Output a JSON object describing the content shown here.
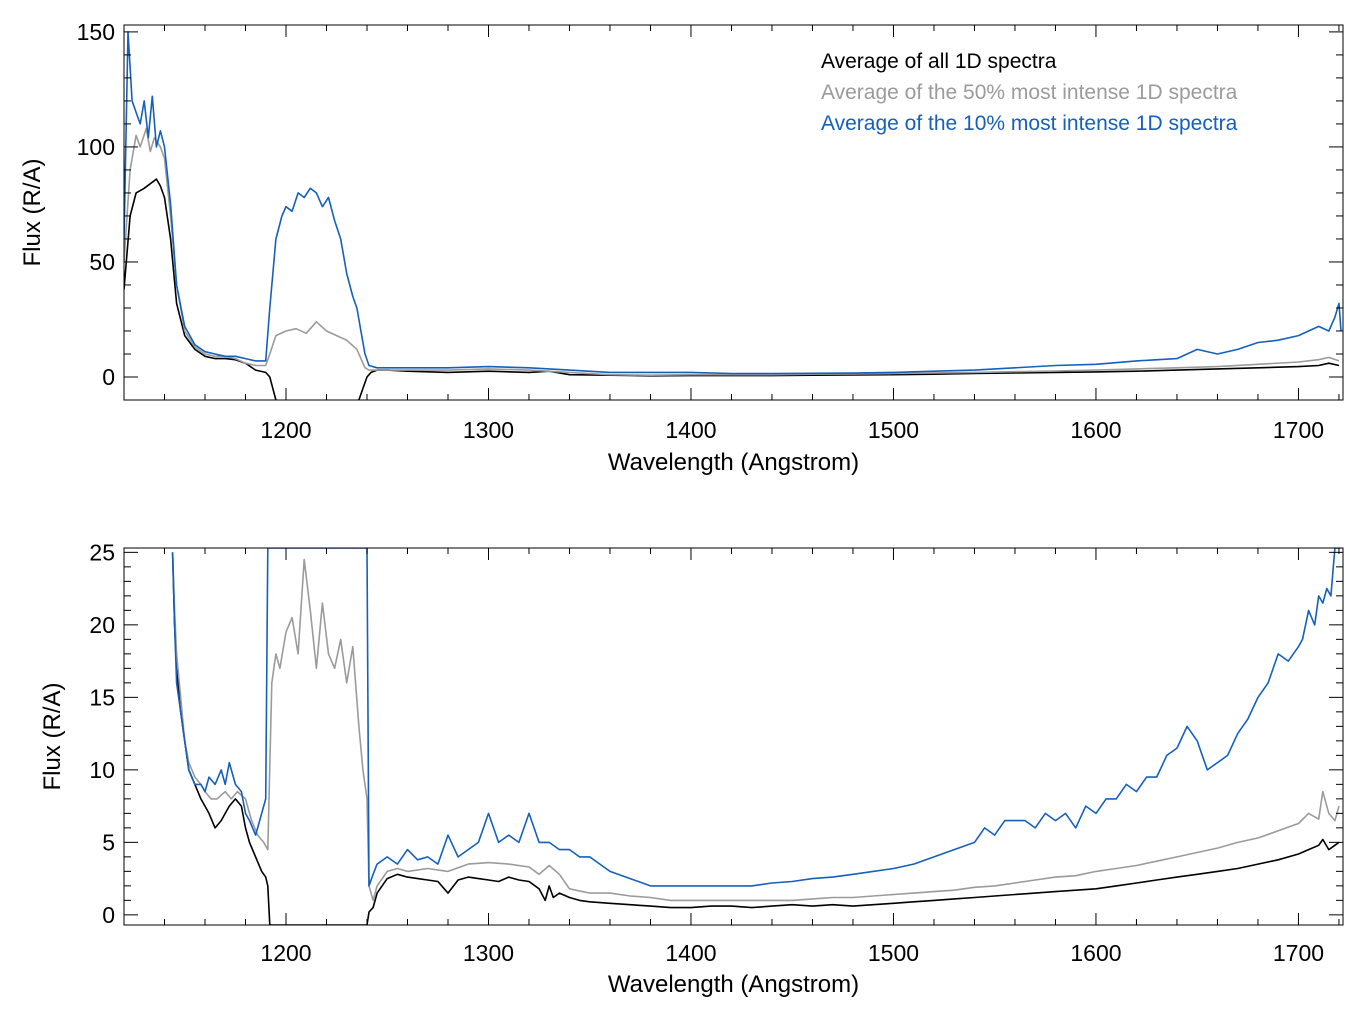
{
  "colors": {
    "all": "#000000",
    "top50": "#9b9b9b",
    "top10": "#1560bd"
  },
  "chart_data": [
    {
      "type": "line",
      "title": "",
      "xlabel": "Wavelength (Angstrom)",
      "ylabel": "Flux (R/A)",
      "xlim": [
        1120,
        1722
      ],
      "ylim": [
        -10,
        153
      ],
      "xticks": [
        1200,
        1300,
        1400,
        1500,
        1600,
        1700
      ],
      "yticks": [
        0,
        50,
        100,
        150
      ],
      "legend": {
        "position": "top-right",
        "entries": [
          "Average of all 1D spectra",
          "Average of the 50% most intense 1D spectra",
          "Average of the 10% most intense 1D spectra"
        ]
      },
      "series": [
        {
          "name": "Average of all 1D spectra",
          "color": "#000000",
          "x": [
            1120,
            1123,
            1126,
            1130,
            1133,
            1136,
            1138,
            1140,
            1143,
            1146,
            1150,
            1155,
            1160,
            1165,
            1170,
            1175,
            1180,
            1185,
            1190,
            1192,
            1195,
            1200,
            1210,
            1220,
            1230,
            1236,
            1238,
            1240,
            1242,
            1245,
            1250,
            1260,
            1280,
            1300,
            1320,
            1330,
            1340,
            1360,
            1380,
            1400,
            1420,
            1440,
            1460,
            1480,
            1500,
            1520,
            1540,
            1560,
            1580,
            1600,
            1620,
            1640,
            1660,
            1680,
            1700,
            1710,
            1715,
            1720
          ],
          "y": [
            38,
            70,
            80,
            82,
            84,
            86,
            83,
            78,
            60,
            32,
            18,
            12,
            9,
            8,
            8,
            7.5,
            6,
            3,
            2,
            0,
            -10,
            -12,
            -12,
            -11,
            -11,
            -10,
            -5,
            0,
            2,
            3,
            3,
            2.5,
            2,
            2.5,
            2,
            2.5,
            1,
            0.8,
            0.5,
            0.6,
            0.6,
            0.6,
            0.8,
            0.9,
            1,
            1.2,
            1.5,
            1.8,
            2,
            2.2,
            2.5,
            3,
            3.5,
            4,
            4.5,
            5,
            6,
            5
          ]
        },
        {
          "name": "Average of the 50% most intense 1D spectra",
          "color": "#9b9b9b",
          "x": [
            1120,
            1123,
            1126,
            1128,
            1131,
            1133,
            1135,
            1138,
            1140,
            1143,
            1146,
            1150,
            1155,
            1160,
            1165,
            1170,
            1175,
            1180,
            1185,
            1190,
            1192,
            1195,
            1200,
            1205,
            1210,
            1215,
            1220,
            1225,
            1230,
            1235,
            1237,
            1239,
            1241,
            1245,
            1250,
            1260,
            1280,
            1300,
            1320,
            1340,
            1360,
            1380,
            1400,
            1420,
            1440,
            1460,
            1480,
            1500,
            1520,
            1540,
            1560,
            1580,
            1600,
            1620,
            1640,
            1660,
            1680,
            1700,
            1710,
            1715,
            1720
          ],
          "y": [
            50,
            90,
            105,
            100,
            108,
            98,
            104,
            100,
            95,
            70,
            40,
            20,
            13,
            10,
            9,
            9,
            8,
            6,
            5,
            5,
            10,
            18,
            20,
            21,
            19,
            24,
            20,
            18,
            16,
            12,
            8,
            4,
            3,
            3,
            3,
            3,
            3,
            3.5,
            3,
            2,
            1,
            0.8,
            1,
            1,
            1,
            1.2,
            1.3,
            1.5,
            1.8,
            2,
            2.3,
            2.6,
            3,
            3.5,
            4,
            4.5,
            5.5,
            6.5,
            7.5,
            8.5,
            7
          ]
        },
        {
          "name": "Average of the 10% most intense 1D spectra",
          "color": "#1560bd",
          "x": [
            1120,
            1122,
            1124,
            1126,
            1128,
            1130,
            1132,
            1134,
            1136,
            1138,
            1140,
            1143,
            1146,
            1150,
            1155,
            1160,
            1165,
            1170,
            1175,
            1180,
            1185,
            1190,
            1192,
            1195,
            1198,
            1200,
            1203,
            1206,
            1209,
            1212,
            1215,
            1218,
            1221,
            1224,
            1227,
            1230,
            1233,
            1235,
            1237,
            1239,
            1241,
            1245,
            1250,
            1260,
            1280,
            1300,
            1320,
            1340,
            1360,
            1380,
            1400,
            1420,
            1440,
            1460,
            1480,
            1500,
            1520,
            1540,
            1560,
            1580,
            1600,
            1620,
            1640,
            1650,
            1660,
            1670,
            1680,
            1690,
            1700,
            1705,
            1710,
            1715,
            1718,
            1720,
            1721
          ],
          "y": [
            60,
            150,
            120,
            115,
            110,
            120,
            104,
            122,
            100,
            107,
            100,
            75,
            40,
            22,
            14,
            11,
            10,
            9,
            9,
            8,
            7,
            7,
            30,
            60,
            70,
            74,
            72,
            80,
            78,
            82,
            80,
            74,
            78,
            68,
            60,
            45,
            35,
            30,
            20,
            10,
            5,
            4,
            4,
            4,
            4,
            4.5,
            4,
            3,
            2,
            2,
            2,
            1.5,
            1.5,
            1.6,
            1.7,
            2,
            2.5,
            3,
            4,
            5,
            5.5,
            7,
            8,
            12,
            10,
            12,
            15,
            16,
            18,
            20,
            22,
            20,
            26,
            32,
            20
          ]
        }
      ]
    },
    {
      "type": "line",
      "title": "",
      "xlabel": "Wavelength (Angstrom)",
      "ylabel": "Flux (R/A)",
      "xlim": [
        1120,
        1722
      ],
      "ylim": [
        -0.7,
        25.3
      ],
      "xticks": [
        1200,
        1300,
        1400,
        1500,
        1600,
        1700
      ],
      "yticks": [
        0,
        5,
        10,
        15,
        20,
        25
      ],
      "series": [
        {
          "name": "Average of all 1D spectra",
          "color": "#000000",
          "x": [
            1144,
            1145,
            1146,
            1148,
            1150,
            1152,
            1155,
            1158,
            1160,
            1162,
            1165,
            1168,
            1170,
            1172,
            1175,
            1178,
            1180,
            1182,
            1185,
            1188,
            1190,
            1191,
            1192,
            1240,
            1241,
            1243,
            1245,
            1250,
            1255,
            1260,
            1265,
            1270,
            1275,
            1280,
            1285,
            1290,
            1295,
            1300,
            1305,
            1310,
            1315,
            1320,
            1325,
            1328,
            1330,
            1332,
            1335,
            1340,
            1345,
            1350,
            1360,
            1370,
            1380,
            1390,
            1400,
            1410,
            1420,
            1430,
            1440,
            1450,
            1460,
            1470,
            1480,
            1490,
            1500,
            1510,
            1520,
            1530,
            1540,
            1550,
            1560,
            1570,
            1580,
            1590,
            1600,
            1610,
            1620,
            1630,
            1640,
            1650,
            1660,
            1670,
            1680,
            1690,
            1700,
            1705,
            1710,
            1712,
            1715,
            1718,
            1720
          ],
          "y": [
            25,
            20,
            17,
            14,
            12,
            10,
            9,
            8,
            7.5,
            7,
            6,
            6.5,
            7,
            7.5,
            8,
            7.5,
            6,
            5,
            4,
            3,
            2.6,
            2,
            -0.7,
            -0.7,
            0.2,
            0.5,
            1.5,
            2.5,
            2.8,
            2.6,
            2.5,
            2.4,
            2.3,
            1.5,
            2.4,
            2.6,
            2.5,
            2.4,
            2.3,
            2.6,
            2.4,
            2.3,
            1.8,
            1,
            2,
            1.2,
            1.5,
            1.2,
            1,
            0.9,
            0.8,
            0.7,
            0.6,
            0.5,
            0.5,
            0.6,
            0.6,
            0.5,
            0.6,
            0.7,
            0.6,
            0.7,
            0.6,
            0.7,
            0.8,
            0.9,
            1,
            1.1,
            1.2,
            1.3,
            1.4,
            1.5,
            1.6,
            1.7,
            1.8,
            2,
            2.2,
            2.4,
            2.6,
            2.8,
            3,
            3.2,
            3.5,
            3.8,
            4.2,
            4.5,
            4.8,
            5.2,
            4.5,
            4.8,
            5
          ]
        },
        {
          "name": "Average of the 50% most intense 1D spectra",
          "color": "#9b9b9b",
          "x": [
            1144,
            1145,
            1146,
            1148,
            1150,
            1152,
            1155,
            1158,
            1160,
            1163,
            1166,
            1170,
            1173,
            1176,
            1180,
            1183,
            1186,
            1189,
            1191,
            1193,
            1195,
            1197,
            1200,
            1203,
            1206,
            1209,
            1212,
            1215,
            1218,
            1221,
            1224,
            1227,
            1230,
            1233,
            1236,
            1238,
            1240,
            1241,
            1243,
            1245,
            1250,
            1255,
            1260,
            1270,
            1280,
            1290,
            1300,
            1310,
            1320,
            1325,
            1330,
            1335,
            1340,
            1350,
            1360,
            1370,
            1380,
            1390,
            1400,
            1410,
            1420,
            1430,
            1440,
            1450,
            1460,
            1470,
            1480,
            1490,
            1500,
            1510,
            1520,
            1530,
            1540,
            1550,
            1560,
            1570,
            1580,
            1590,
            1600,
            1610,
            1620,
            1630,
            1640,
            1650,
            1660,
            1670,
            1680,
            1690,
            1700,
            1705,
            1710,
            1712,
            1715,
            1718,
            1720
          ],
          "y": [
            25,
            21,
            18,
            15,
            12,
            10.5,
            9.5,
            9,
            8.5,
            8,
            8,
            8.5,
            8,
            8.5,
            8,
            6.5,
            5.5,
            5,
            4.5,
            16,
            18,
            17,
            19.5,
            20.5,
            18,
            24.5,
            21,
            17,
            21.5,
            18,
            17,
            19,
            16,
            18.5,
            13,
            10,
            8,
            2,
            1,
            2,
            3,
            3.2,
            3,
            3.2,
            3,
            3.5,
            3.6,
            3.5,
            3.3,
            2.8,
            3.4,
            2.8,
            1.8,
            1.5,
            1.5,
            1.3,
            1.2,
            1,
            1,
            1,
            1,
            1,
            1,
            1,
            1.1,
            1.2,
            1.2,
            1.3,
            1.4,
            1.5,
            1.6,
            1.7,
            1.9,
            2,
            2.2,
            2.4,
            2.6,
            2.7,
            3,
            3.2,
            3.4,
            3.7,
            4,
            4.3,
            4.6,
            5,
            5.3,
            5.8,
            6.3,
            7,
            6.6,
            8.5,
            7,
            6.5,
            7.5
          ]
        },
        {
          "name": "Average of the 10% most intense 1D spectra",
          "color": "#1560bd",
          "x": [
            1144,
            1145,
            1146,
            1148,
            1150,
            1152,
            1155,
            1158,
            1160,
            1162,
            1165,
            1168,
            1170,
            1172,
            1175,
            1178,
            1180,
            1182,
            1185,
            1188,
            1190,
            1191,
            1193,
            1240,
            1241,
            1243,
            1245,
            1250,
            1255,
            1260,
            1265,
            1270,
            1275,
            1280,
            1285,
            1290,
            1295,
            1300,
            1305,
            1310,
            1315,
            1320,
            1325,
            1330,
            1335,
            1340,
            1345,
            1350,
            1360,
            1370,
            1380,
            1390,
            1400,
            1410,
            1420,
            1430,
            1440,
            1450,
            1460,
            1470,
            1480,
            1490,
            1500,
            1510,
            1520,
            1530,
            1540,
            1545,
            1550,
            1555,
            1560,
            1565,
            1570,
            1575,
            1580,
            1585,
            1590,
            1595,
            1600,
            1605,
            1610,
            1615,
            1620,
            1625,
            1630,
            1635,
            1640,
            1645,
            1650,
            1655,
            1660,
            1665,
            1670,
            1675,
            1680,
            1685,
            1690,
            1695,
            1700,
            1702,
            1705,
            1708,
            1710,
            1712,
            1714,
            1716,
            1718,
            1720,
            1721
          ],
          "y": [
            25,
            20,
            16,
            14,
            12,
            10,
            9,
            9,
            8.5,
            9.5,
            9,
            10,
            9,
            10.5,
            9,
            8.5,
            7,
            6.5,
            5.5,
            7,
            8,
            25.3,
            25.3,
            25.3,
            2,
            2.8,
            3.5,
            4,
            3.5,
            4.5,
            3.8,
            4,
            3.5,
            5.5,
            4,
            4.5,
            5,
            7,
            5,
            5.5,
            5,
            7,
            5,
            5,
            4.5,
            4.5,
            4,
            4,
            3,
            2.5,
            2,
            2,
            2,
            2,
            2,
            2,
            2.2,
            2.3,
            2.5,
            2.6,
            2.8,
            3,
            3.2,
            3.5,
            4,
            4.5,
            5,
            6,
            5.5,
            6.5,
            6.5,
            6.5,
            6,
            7,
            6.5,
            7,
            6,
            7.5,
            7,
            8,
            8,
            9,
            8.5,
            9.5,
            9.5,
            11,
            11.5,
            13,
            12,
            10,
            10.5,
            11,
            12.5,
            13.5,
            15,
            16,
            18,
            17.5,
            18.5,
            19,
            21,
            20,
            22,
            21.5,
            22.5,
            22,
            25.3,
            25.3,
            25.3
          ]
        }
      ]
    }
  ]
}
